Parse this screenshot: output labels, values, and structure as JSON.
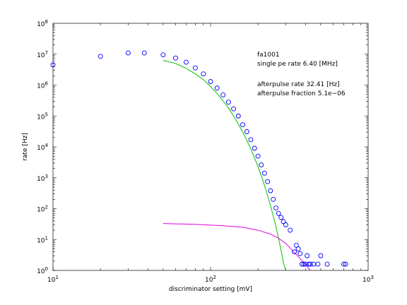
{
  "chart_data": {
    "type": "scatter",
    "xlabel": "discriminator setting [mV]",
    "ylabel": "rate [Hz]",
    "xscale": "log",
    "yscale": "log",
    "xlim": [
      10,
      1000
    ],
    "ylim": [
      1,
      100000000
    ],
    "x_ticks": [
      {
        "value": 10,
        "base": "10",
        "exp": "1"
      },
      {
        "value": 100,
        "base": "10",
        "exp": "2"
      },
      {
        "value": 1000,
        "base": "10",
        "exp": "3"
      }
    ],
    "y_ticks": [
      {
        "value": 1,
        "base": "10",
        "exp": "0"
      },
      {
        "value": 10,
        "base": "10",
        "exp": "1"
      },
      {
        "value": 100,
        "base": "10",
        "exp": "2"
      },
      {
        "value": 1000,
        "base": "10",
        "exp": "3"
      },
      {
        "value": 10000,
        "base": "10",
        "exp": "4"
      },
      {
        "value": 100000,
        "base": "10",
        "exp": "5"
      },
      {
        "value": 1000000,
        "base": "10",
        "exp": "6"
      },
      {
        "value": 10000000,
        "base": "10",
        "exp": "7"
      },
      {
        "value": 100000000,
        "base": "10",
        "exp": "8"
      }
    ],
    "annotations": [
      "fa1001",
      "single pe rate 6.40 [MHz]",
      "afterpulse rate 32.41 [Hz]",
      "afterpulse fraction 5.1e−06"
    ],
    "series": [
      {
        "kind": "points",
        "marker": "circle",
        "color": "#0000ff",
        "points": [
          [
            10,
            4500000
          ],
          [
            20,
            8500000
          ],
          [
            30,
            11000000
          ],
          [
            38,
            11000000
          ],
          [
            50,
            9500000
          ],
          [
            60,
            7500000
          ],
          [
            70,
            5500000
          ],
          [
            80,
            3600000
          ],
          [
            90,
            2300000
          ],
          [
            100,
            1300000
          ],
          [
            110,
            800000
          ],
          [
            120,
            480000
          ],
          [
            130,
            280000
          ],
          [
            140,
            170000
          ],
          [
            150,
            100000
          ],
          [
            160,
            52000
          ],
          [
            170,
            31000
          ],
          [
            180,
            17000
          ],
          [
            190,
            9000
          ],
          [
            200,
            5000
          ],
          [
            210,
            2600
          ],
          [
            220,
            1400
          ],
          [
            230,
            750
          ],
          [
            240,
            380
          ],
          [
            250,
            200
          ],
          [
            260,
            105
          ],
          [
            270,
            70
          ],
          [
            280,
            52
          ],
          [
            290,
            38
          ],
          [
            300,
            30
          ],
          [
            320,
            20
          ],
          [
            340,
            4
          ],
          [
            350,
            6.5
          ],
          [
            360,
            5
          ],
          [
            370,
            3.5
          ],
          [
            380,
            1.6
          ],
          [
            390,
            1.6
          ],
          [
            400,
            1.6
          ],
          [
            410,
            3
          ],
          [
            420,
            1.6
          ],
          [
            430,
            1.6
          ],
          [
            450,
            1.6
          ],
          [
            480,
            1.6
          ],
          [
            500,
            3
          ],
          [
            550,
            1.6
          ],
          [
            700,
            1.6
          ],
          [
            720,
            1.6
          ]
        ]
      },
      {
        "kind": "line",
        "color": "#00c000",
        "points": [
          [
            50,
            6300000
          ],
          [
            60,
            5000000
          ],
          [
            70,
            3500000
          ],
          [
            80,
            2300000
          ],
          [
            90,
            1500000
          ],
          [
            100,
            900000
          ],
          [
            110,
            530000
          ],
          [
            120,
            310000
          ],
          [
            130,
            180000
          ],
          [
            140,
            100000
          ],
          [
            150,
            55000
          ],
          [
            160,
            30000
          ],
          [
            170,
            16000
          ],
          [
            180,
            8500
          ],
          [
            190,
            4400
          ],
          [
            200,
            2300
          ],
          [
            210,
            1150
          ],
          [
            220,
            560
          ],
          [
            230,
            270
          ],
          [
            240,
            125
          ],
          [
            250,
            58
          ],
          [
            260,
            26
          ],
          [
            270,
            11
          ],
          [
            280,
            4.5
          ],
          [
            290,
            1.8
          ],
          [
            300,
            1
          ]
        ]
      },
      {
        "kind": "line",
        "color": "#e000e0",
        "points": [
          [
            50,
            33
          ],
          [
            80,
            31
          ],
          [
            120,
            28
          ],
          [
            160,
            25
          ],
          [
            200,
            20
          ],
          [
            240,
            15
          ],
          [
            270,
            11
          ],
          [
            300,
            7.5
          ],
          [
            330,
            4.5
          ],
          [
            360,
            2.8
          ],
          [
            390,
            1.8
          ],
          [
            430,
            1
          ]
        ]
      }
    ]
  }
}
